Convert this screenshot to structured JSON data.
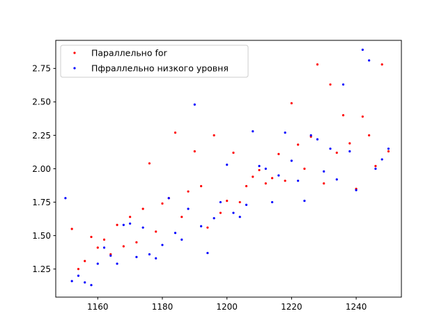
{
  "chart_data": {
    "type": "scatter",
    "xlim": [
      1147,
      1254
    ],
    "ylim": [
      1.04,
      2.96
    ],
    "x_ticks": [
      1160,
      1180,
      1200,
      1220,
      1240
    ],
    "y_ticks": [
      1.25,
      1.5,
      1.75,
      2.0,
      2.25,
      2.5,
      2.75
    ],
    "x_tick_labels": [
      "1160",
      "1180",
      "1200",
      "1220",
      "1240"
    ],
    "y_tick_labels": [
      "1.25",
      "1.50",
      "1.75",
      "2.00",
      "2.25",
      "2.50",
      "2.75"
    ],
    "grid": false,
    "legend_position": "top-left",
    "series": [
      {
        "name": "Параллельно for",
        "color": "#ff0000",
        "points": [
          [
            1152,
            1.55
          ],
          [
            1154,
            1.25
          ],
          [
            1156,
            1.31
          ],
          [
            1158,
            1.49
          ],
          [
            1160,
            1.41
          ],
          [
            1162,
            1.47
          ],
          [
            1164,
            1.36
          ],
          [
            1166,
            1.58
          ],
          [
            1168,
            1.42
          ],
          [
            1170,
            1.64
          ],
          [
            1172,
            1.45
          ],
          [
            1174,
            1.7
          ],
          [
            1176,
            2.04
          ],
          [
            1178,
            1.53
          ],
          [
            1180,
            1.74
          ],
          [
            1182,
            1.78
          ],
          [
            1184,
            2.27
          ],
          [
            1186,
            1.64
          ],
          [
            1188,
            1.83
          ],
          [
            1190,
            2.13
          ],
          [
            1192,
            1.87
          ],
          [
            1194,
            1.56
          ],
          [
            1196,
            2.25
          ],
          [
            1198,
            1.67
          ],
          [
            1200,
            1.76
          ],
          [
            1202,
            2.12
          ],
          [
            1204,
            1.75
          ],
          [
            1206,
            1.87
          ],
          [
            1208,
            1.94
          ],
          [
            1210,
            1.99
          ],
          [
            1212,
            1.89
          ],
          [
            1214,
            1.93
          ],
          [
            1216,
            2.11
          ],
          [
            1218,
            1.91
          ],
          [
            1220,
            2.49
          ],
          [
            1222,
            2.18
          ],
          [
            1224,
            2.0
          ],
          [
            1226,
            2.24
          ],
          [
            1228,
            2.78
          ],
          [
            1230,
            1.89
          ],
          [
            1232,
            2.63
          ],
          [
            1234,
            2.12
          ],
          [
            1236,
            2.4
          ],
          [
            1238,
            2.19
          ],
          [
            1240,
            1.85
          ],
          [
            1242,
            2.39
          ],
          [
            1244,
            2.25
          ],
          [
            1246,
            2.02
          ],
          [
            1248,
            2.78
          ],
          [
            1250,
            2.13
          ]
        ]
      },
      {
        "name": "Пфраллельно низкого уровня",
        "color": "#0000ff",
        "points": [
          [
            1150,
            1.78
          ],
          [
            1152,
            1.16
          ],
          [
            1154,
            1.2
          ],
          [
            1156,
            1.15
          ],
          [
            1158,
            1.13
          ],
          [
            1160,
            1.29
          ],
          [
            1162,
            1.41
          ],
          [
            1164,
            1.35
          ],
          [
            1166,
            1.29
          ],
          [
            1168,
            1.58
          ],
          [
            1170,
            1.59
          ],
          [
            1172,
            1.34
          ],
          [
            1174,
            1.56
          ],
          [
            1176,
            1.36
          ],
          [
            1178,
            1.33
          ],
          [
            1180,
            1.43
          ],
          [
            1182,
            1.78
          ],
          [
            1184,
            1.52
          ],
          [
            1186,
            1.47
          ],
          [
            1188,
            1.7
          ],
          [
            1190,
            2.48
          ],
          [
            1192,
            1.57
          ],
          [
            1194,
            1.37
          ],
          [
            1196,
            1.63
          ],
          [
            1198,
            1.75
          ],
          [
            1200,
            2.03
          ],
          [
            1202,
            1.67
          ],
          [
            1204,
            1.64
          ],
          [
            1206,
            1.73
          ],
          [
            1208,
            2.28
          ],
          [
            1210,
            2.02
          ],
          [
            1212,
            2.0
          ],
          [
            1214,
            1.75
          ],
          [
            1216,
            1.95
          ],
          [
            1218,
            2.27
          ],
          [
            1220,
            2.06
          ],
          [
            1222,
            1.91
          ],
          [
            1224,
            1.76
          ],
          [
            1226,
            2.25
          ],
          [
            1228,
            2.22
          ],
          [
            1230,
            1.98
          ],
          [
            1232,
            2.15
          ],
          [
            1234,
            1.92
          ],
          [
            1236,
            2.63
          ],
          [
            1238,
            2.13
          ],
          [
            1240,
            1.84
          ],
          [
            1242,
            2.89
          ],
          [
            1244,
            2.81
          ],
          [
            1246,
            2.0
          ],
          [
            1248,
            2.07
          ],
          [
            1250,
            2.15
          ]
        ]
      }
    ]
  }
}
